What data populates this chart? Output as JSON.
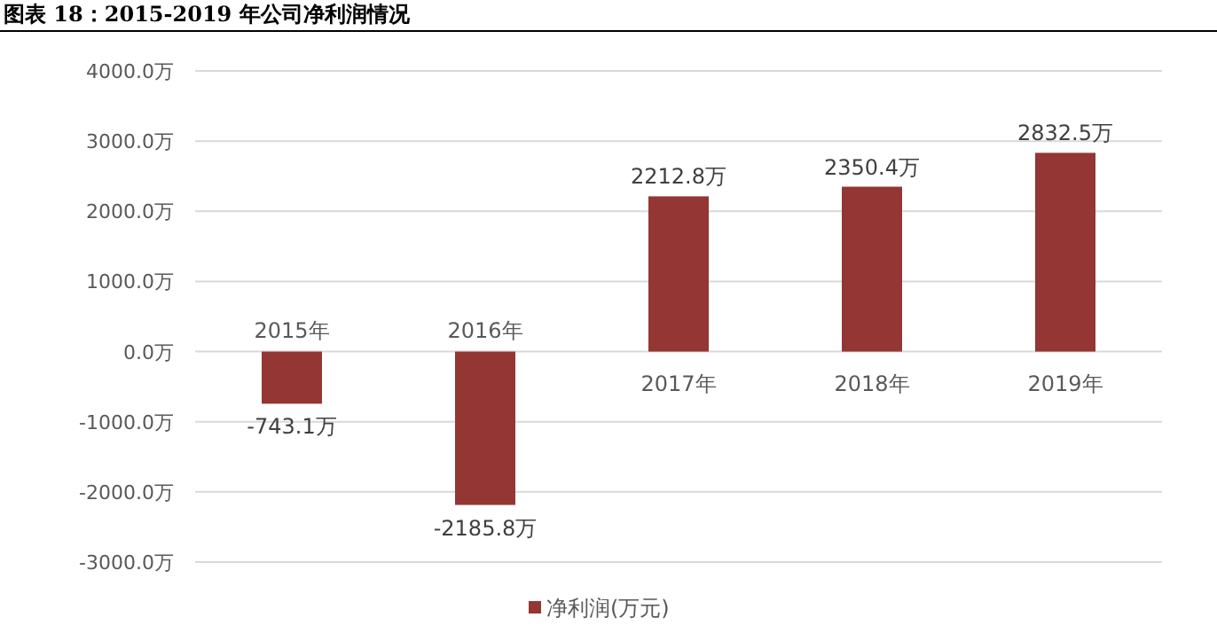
{
  "chart_data": {
    "type": "bar",
    "title": "图表 18：2015-2019 年公司净利润情况",
    "categories": [
      "2015年",
      "2016年",
      "2017年",
      "2018年",
      "2019年"
    ],
    "series": [
      {
        "name": "净利润(万元)",
        "color": "#943634",
        "values": [
          -743.1,
          -2185.8,
          2212.8,
          2350.4,
          2832.5
        ],
        "value_labels": [
          "-743.1万",
          "-2185.8万",
          "2212.8万",
          "2350.4万",
          "2832.5万"
        ]
      }
    ],
    "ylim": [
      -3000,
      4000
    ],
    "yticks": [
      {
        "value": -3000,
        "label": "-3000.0万"
      },
      {
        "value": -2000,
        "label": "-2000.0万"
      },
      {
        "value": -1000,
        "label": "-1000.0万"
      },
      {
        "value": 0,
        "label": "0.0万"
      },
      {
        "value": 1000,
        "label": "1000.0万"
      },
      {
        "value": 2000,
        "label": "2000.0万"
      },
      {
        "value": 3000,
        "label": "3000.0万"
      },
      {
        "value": 4000,
        "label": "4000.0万"
      }
    ],
    "grid": "y",
    "legend": "bottom"
  }
}
